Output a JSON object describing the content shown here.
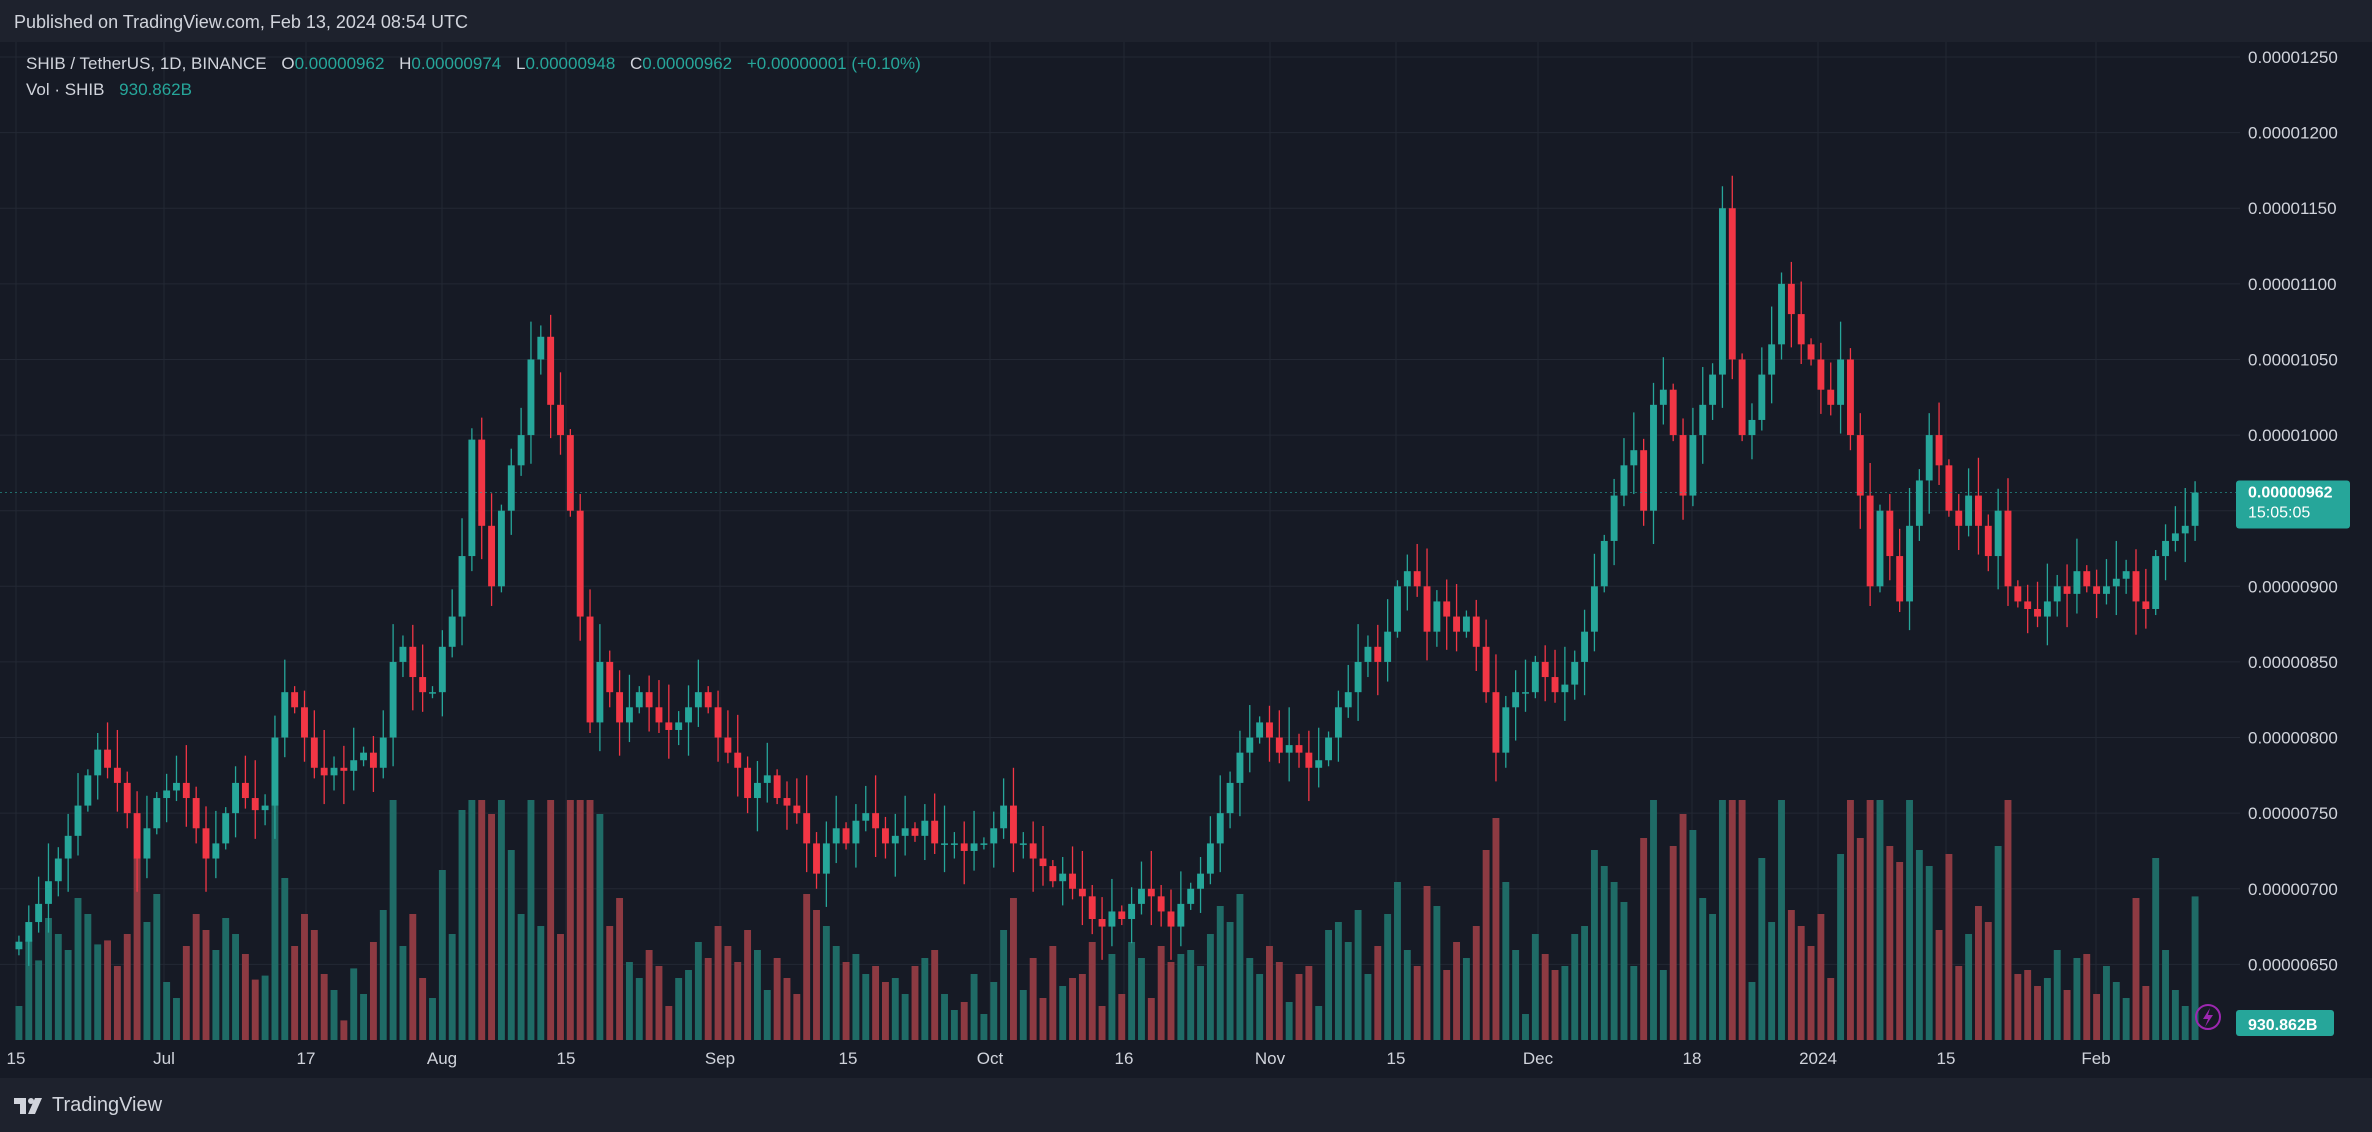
{
  "header": {
    "published": "Published on TradingView.com, Feb 13, 2024 08:54 UTC"
  },
  "footer": {
    "brand": "TradingView"
  },
  "legend": {
    "symbol": "SHIB / TetherUS, 1D, BINANCE",
    "open_label": "O",
    "open": "0.00000962",
    "high_label": "H",
    "high": "0.00000974",
    "low_label": "L",
    "low": "0.00000948",
    "close_label": "C",
    "close": "0.00000962",
    "change": "+0.00000001 (+0.10%)",
    "vol_label": "Vol · SHIB",
    "vol": "930.862B"
  },
  "price_badge": {
    "price": "0.00000962",
    "countdown": "15:05:05"
  },
  "volume_badge": "930.862B",
  "colors": {
    "up": "#26a69a",
    "down": "#f23645",
    "vol_up": "#1f6b66",
    "vol_down": "#8d3a42",
    "background": "#161a25",
    "grid": "#232834",
    "axis_text": "#d1d4dc"
  },
  "chart_data": {
    "type": "candlestick",
    "interval": "1D",
    "exchange": "BINANCE",
    "y_axis": {
      "ticks": [
        "0.00000650",
        "0.00000700",
        "0.00000750",
        "0.00000800",
        "0.00000850",
        "0.00000900",
        "0.00000950",
        "0.00001000",
        "0.00001050",
        "0.00001100",
        "0.00001150",
        "0.00001200",
        "0.00001250"
      ],
      "range": [
        6.15,
        12.65
      ],
      "unit": "e-6"
    },
    "x_axis": {
      "ticks": [
        "15",
        "Jul",
        "17",
        "Aug",
        "15",
        "Sep",
        "15",
        "Oct",
        "16",
        "Nov",
        "15",
        "Dec",
        "18",
        "2024",
        "15",
        "Feb"
      ]
    },
    "closes_e6": [
      6.65,
      6.78,
      6.9,
      7.05,
      7.2,
      7.35,
      7.55,
      7.75,
      7.92,
      7.8,
      7.7,
      7.5,
      7.2,
      7.4,
      7.6,
      7.65,
      7.7,
      7.6,
      7.4,
      7.2,
      7.3,
      7.5,
      7.7,
      7.6,
      7.52,
      7.55,
      8.0,
      8.3,
      8.2,
      8.0,
      7.8,
      7.75,
      7.8,
      7.78,
      7.85,
      7.9,
      7.8,
      8.0,
      8.5,
      8.6,
      8.4,
      8.3,
      8.3,
      8.6,
      8.8,
      9.2,
      9.97,
      9.4,
      9.0,
      9.5,
      9.8,
      10.0,
      10.5,
      10.65,
      10.2,
      10.0,
      9.5,
      8.8,
      8.1,
      8.5,
      8.3,
      8.1,
      8.2,
      8.3,
      8.2,
      8.1,
      8.05,
      8.1,
      8.2,
      8.3,
      8.2,
      8.0,
      7.9,
      7.8,
      7.6,
      7.7,
      7.75,
      7.6,
      7.55,
      7.5,
      7.3,
      7.1,
      7.3,
      7.4,
      7.3,
      7.45,
      7.5,
      7.4,
      7.3,
      7.35,
      7.4,
      7.35,
      7.45,
      7.3,
      7.3,
      7.3,
      7.25,
      7.3,
      7.3,
      7.4,
      7.55,
      7.3,
      7.3,
      7.2,
      7.15,
      7.05,
      7.1,
      7.0,
      6.95,
      6.8,
      6.75,
      6.85,
      6.8,
      6.9,
      7.0,
      6.95,
      6.85,
      6.75,
      6.9,
      7.0,
      7.1,
      7.3,
      7.5,
      7.7,
      7.9,
      8.0,
      8.1,
      8.0,
      7.9,
      7.95,
      7.9,
      7.8,
      7.85,
      8.0,
      8.2,
      8.3,
      8.5,
      8.6,
      8.5,
      8.7,
      9.0,
      9.1,
      9.0,
      8.7,
      8.9,
      8.8,
      8.7,
      8.8,
      8.6,
      8.3,
      7.9,
      8.2,
      8.3,
      8.3,
      8.5,
      8.4,
      8.3,
      8.35,
      8.5,
      8.7,
      9.0,
      9.3,
      9.6,
      9.8,
      9.9,
      9.5,
      10.2,
      10.3,
      10.0,
      9.6,
      10.0,
      10.2,
      10.4,
      11.5,
      10.5,
      10.0,
      10.1,
      10.4,
      10.6,
      11.0,
      10.8,
      10.6,
      10.5,
      10.3,
      10.2,
      10.5,
      10.0,
      9.6,
      9.0,
      9.5,
      9.2,
      8.9,
      9.4,
      9.7,
      10.0,
      9.8,
      9.5,
      9.4,
      9.6,
      9.4,
      9.2,
      9.5,
      9.0,
      8.9,
      8.85,
      8.8,
      8.9,
      9.0,
      8.95,
      9.1,
      9.0,
      8.95,
      9.0,
      9.05,
      9.1,
      8.9,
      8.85,
      9.2,
      9.3,
      9.35,
      9.4,
      9.62
    ]
  }
}
